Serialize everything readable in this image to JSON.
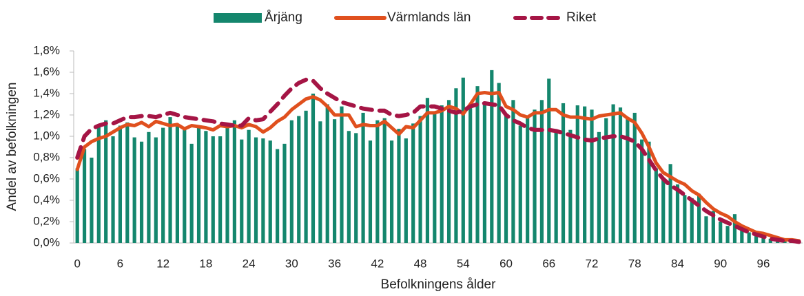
{
  "chart_data": {
    "type": "combo",
    "ylabel": "Andel av befolkningen",
    "xlabel": "Befolkningens ålder",
    "categories": [
      "0",
      null,
      null,
      null,
      null,
      null,
      "6",
      null,
      null,
      null,
      null,
      null,
      "12",
      null,
      null,
      null,
      null,
      null,
      "18",
      null,
      null,
      null,
      null,
      null,
      "24",
      null,
      null,
      null,
      null,
      null,
      "30",
      null,
      null,
      null,
      null,
      null,
      "36",
      null,
      null,
      null,
      null,
      null,
      "42",
      null,
      null,
      null,
      null,
      null,
      "48",
      null,
      null,
      null,
      null,
      null,
      "54",
      null,
      null,
      null,
      null,
      null,
      "60",
      null,
      null,
      null,
      null,
      null,
      "66",
      null,
      null,
      null,
      null,
      null,
      "72",
      null,
      null,
      null,
      null,
      null,
      "78",
      null,
      null,
      null,
      null,
      null,
      "84",
      null,
      null,
      null,
      null,
      null,
      "90",
      null,
      null,
      null,
      null,
      null,
      "96",
      null,
      null,
      null,
      null,
      null
    ],
    "ylim": [
      0,
      1.8
    ],
    "yticks": [
      {
        "value": 0,
        "label": "0,0%"
      },
      {
        "value": 0.2,
        "label": "0,2%"
      },
      {
        "value": 0.4,
        "label": "0,4%"
      },
      {
        "value": 0.6,
        "label": "0,6%"
      },
      {
        "value": 0.8,
        "label": "0,8%"
      },
      {
        "value": 1.0,
        "label": "1,0%"
      },
      {
        "value": 1.2,
        "label": "1,2%"
      },
      {
        "value": 1.4,
        "label": "1,4%"
      },
      {
        "value": 1.6,
        "label": "1,6%"
      },
      {
        "value": 1.8,
        "label": "1,8%"
      }
    ],
    "legend": "top",
    "series": [
      {
        "name": "Årjäng",
        "type": "bar",
        "color": "#14866d",
        "values": [
          0.7,
          0.88,
          0.8,
          1.1,
          1.15,
          1.0,
          1.1,
          1.13,
          0.99,
          0.95,
          1.04,
          0.99,
          1.08,
          1.18,
          1.1,
          1.06,
          0.93,
          1.1,
          1.05,
          1.0,
          1.0,
          1.08,
          1.15,
          0.97,
          1.06,
          0.99,
          0.98,
          0.96,
          0.88,
          0.93,
          1.15,
          1.19,
          1.24,
          1.4,
          1.14,
          1.3,
          1.16,
          1.28,
          1.05,
          1.03,
          1.22,
          0.96,
          1.15,
          1.17,
          0.96,
          1.07,
          0.98,
          1.12,
          1.19,
          1.36,
          1.22,
          1.29,
          1.34,
          1.45,
          1.55,
          1.3,
          1.47,
          1.3,
          1.62,
          1.5,
          1.2,
          1.34,
          1.1,
          1.17,
          1.25,
          1.34,
          1.54,
          1.05,
          1.31,
          1.06,
          1.29,
          1.28,
          1.25,
          1.04,
          1.17,
          1.3,
          1.27,
          1.17,
          1.22,
          0.97,
          0.95,
          0.7,
          0.6,
          0.74,
          0.55,
          0.45,
          0.42,
          0.46,
          0.25,
          0.3,
          0.2,
          0.16,
          0.27,
          0.15,
          0.1,
          0.07,
          0.05,
          0.04,
          0.03,
          0.02,
          0.02,
          0.01
        ]
      },
      {
        "name": "Värmlands län",
        "type": "line",
        "color": "#e0501e",
        "values": [
          0.69,
          0.9,
          0.95,
          0.98,
          1.0,
          1.04,
          1.08,
          1.11,
          1.1,
          1.13,
          1.09,
          1.14,
          1.12,
          1.1,
          1.11,
          1.07,
          1.1,
          1.09,
          1.08,
          1.06,
          1.1,
          1.09,
          1.1,
          1.08,
          1.11,
          1.09,
          1.04,
          1.08,
          1.14,
          1.18,
          1.25,
          1.3,
          1.35,
          1.37,
          1.34,
          1.28,
          1.2,
          1.2,
          1.2,
          1.09,
          1.11,
          1.1,
          1.1,
          1.14,
          1.08,
          1.02,
          1.09,
          1.08,
          1.15,
          1.22,
          1.22,
          1.24,
          1.28,
          1.26,
          1.21,
          1.3,
          1.4,
          1.41,
          1.4,
          1.41,
          1.28,
          1.25,
          1.2,
          1.18,
          1.22,
          1.22,
          1.25,
          1.25,
          1.2,
          1.18,
          1.18,
          1.17,
          1.16,
          1.19,
          1.2,
          1.21,
          1.22,
          1.17,
          1.13,
          1.03,
          0.9,
          0.75,
          0.66,
          0.62,
          0.58,
          0.55,
          0.49,
          0.45,
          0.38,
          0.32,
          0.28,
          0.25,
          0.2,
          0.16,
          0.13,
          0.1,
          0.09,
          0.07,
          0.05,
          0.03,
          0.03,
          0.02
        ]
      },
      {
        "name": "Riket",
        "type": "line",
        "dashed": true,
        "color": "#a51545",
        "values": [
          0.8,
          1.0,
          1.07,
          1.1,
          1.12,
          1.12,
          1.15,
          1.18,
          1.18,
          1.19,
          1.19,
          1.18,
          1.2,
          1.22,
          1.2,
          1.18,
          1.17,
          1.16,
          1.15,
          1.14,
          1.12,
          1.11,
          1.1,
          1.1,
          1.17,
          1.15,
          1.16,
          1.23,
          1.3,
          1.38,
          1.45,
          1.5,
          1.53,
          1.52,
          1.45,
          1.4,
          1.36,
          1.32,
          1.3,
          1.28,
          1.26,
          1.25,
          1.24,
          1.24,
          1.2,
          1.19,
          1.2,
          1.22,
          1.28,
          1.28,
          1.28,
          1.26,
          1.24,
          1.22,
          1.24,
          1.28,
          1.3,
          1.31,
          1.3,
          1.29,
          1.2,
          1.15,
          1.12,
          1.08,
          1.06,
          1.06,
          1.06,
          1.05,
          1.03,
          1.01,
          0.99,
          0.97,
          0.96,
          0.98,
          0.99,
          1.0,
          1.0,
          0.98,
          0.95,
          0.88,
          0.78,
          0.68,
          0.6,
          0.54,
          0.5,
          0.45,
          0.4,
          0.35,
          0.3,
          0.26,
          0.22,
          0.19,
          0.16,
          0.13,
          0.1,
          0.08,
          0.06,
          0.04,
          0.03,
          0.02,
          0.02,
          0.01
        ]
      }
    ]
  }
}
